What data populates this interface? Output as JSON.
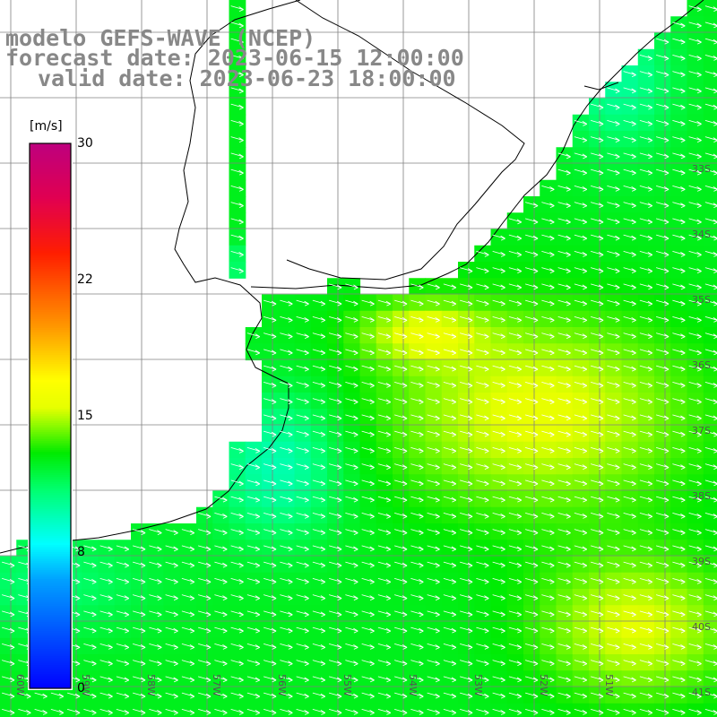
{
  "title": {
    "line1": "modelo GEFS-WAVE (NCEP)",
    "line2": "forecast date: 2023-06-15 12:00:00",
    "line3": "valid date: 2023-06-23 18:00:00"
  },
  "colorbar": {
    "unit": "[m/s]",
    "min": 0,
    "max": 30,
    "ticks": [
      "30",
      "22",
      "15",
      "8",
      "0"
    ],
    "tick_values": [
      30,
      22,
      15,
      8,
      0
    ],
    "colors": [
      "#0000ff",
      "#00b0ff",
      "#00ffff",
      "#00ff60",
      "#00ff00",
      "#b0ff00",
      "#ffff00",
      "#ffb000",
      "#ff6000",
      "#ff0000",
      "#e0005a",
      "#c0007a"
    ]
  },
  "map": {
    "lat_labels": [
      "33S",
      "34S",
      "35S",
      "36S",
      "37S",
      "38S",
      "39S",
      "40S",
      "41S"
    ],
    "lat_values": [
      -33,
      -34,
      -35,
      -36,
      -37,
      -38,
      -39,
      -40,
      -41
    ],
    "lon_labels": [
      "61W",
      "60W",
      "59W",
      "58W",
      "57W",
      "56W",
      "55W",
      "54W",
      "53W",
      "52W",
      "51W"
    ],
    "lon_values": [
      -61,
      -60,
      -59,
      -58,
      -57,
      -56,
      -55,
      -54,
      -53,
      -52,
      -51
    ],
    "vector_color": "#ffffff",
    "coast_color": "#000000",
    "grid_color": "#808080"
  }
}
